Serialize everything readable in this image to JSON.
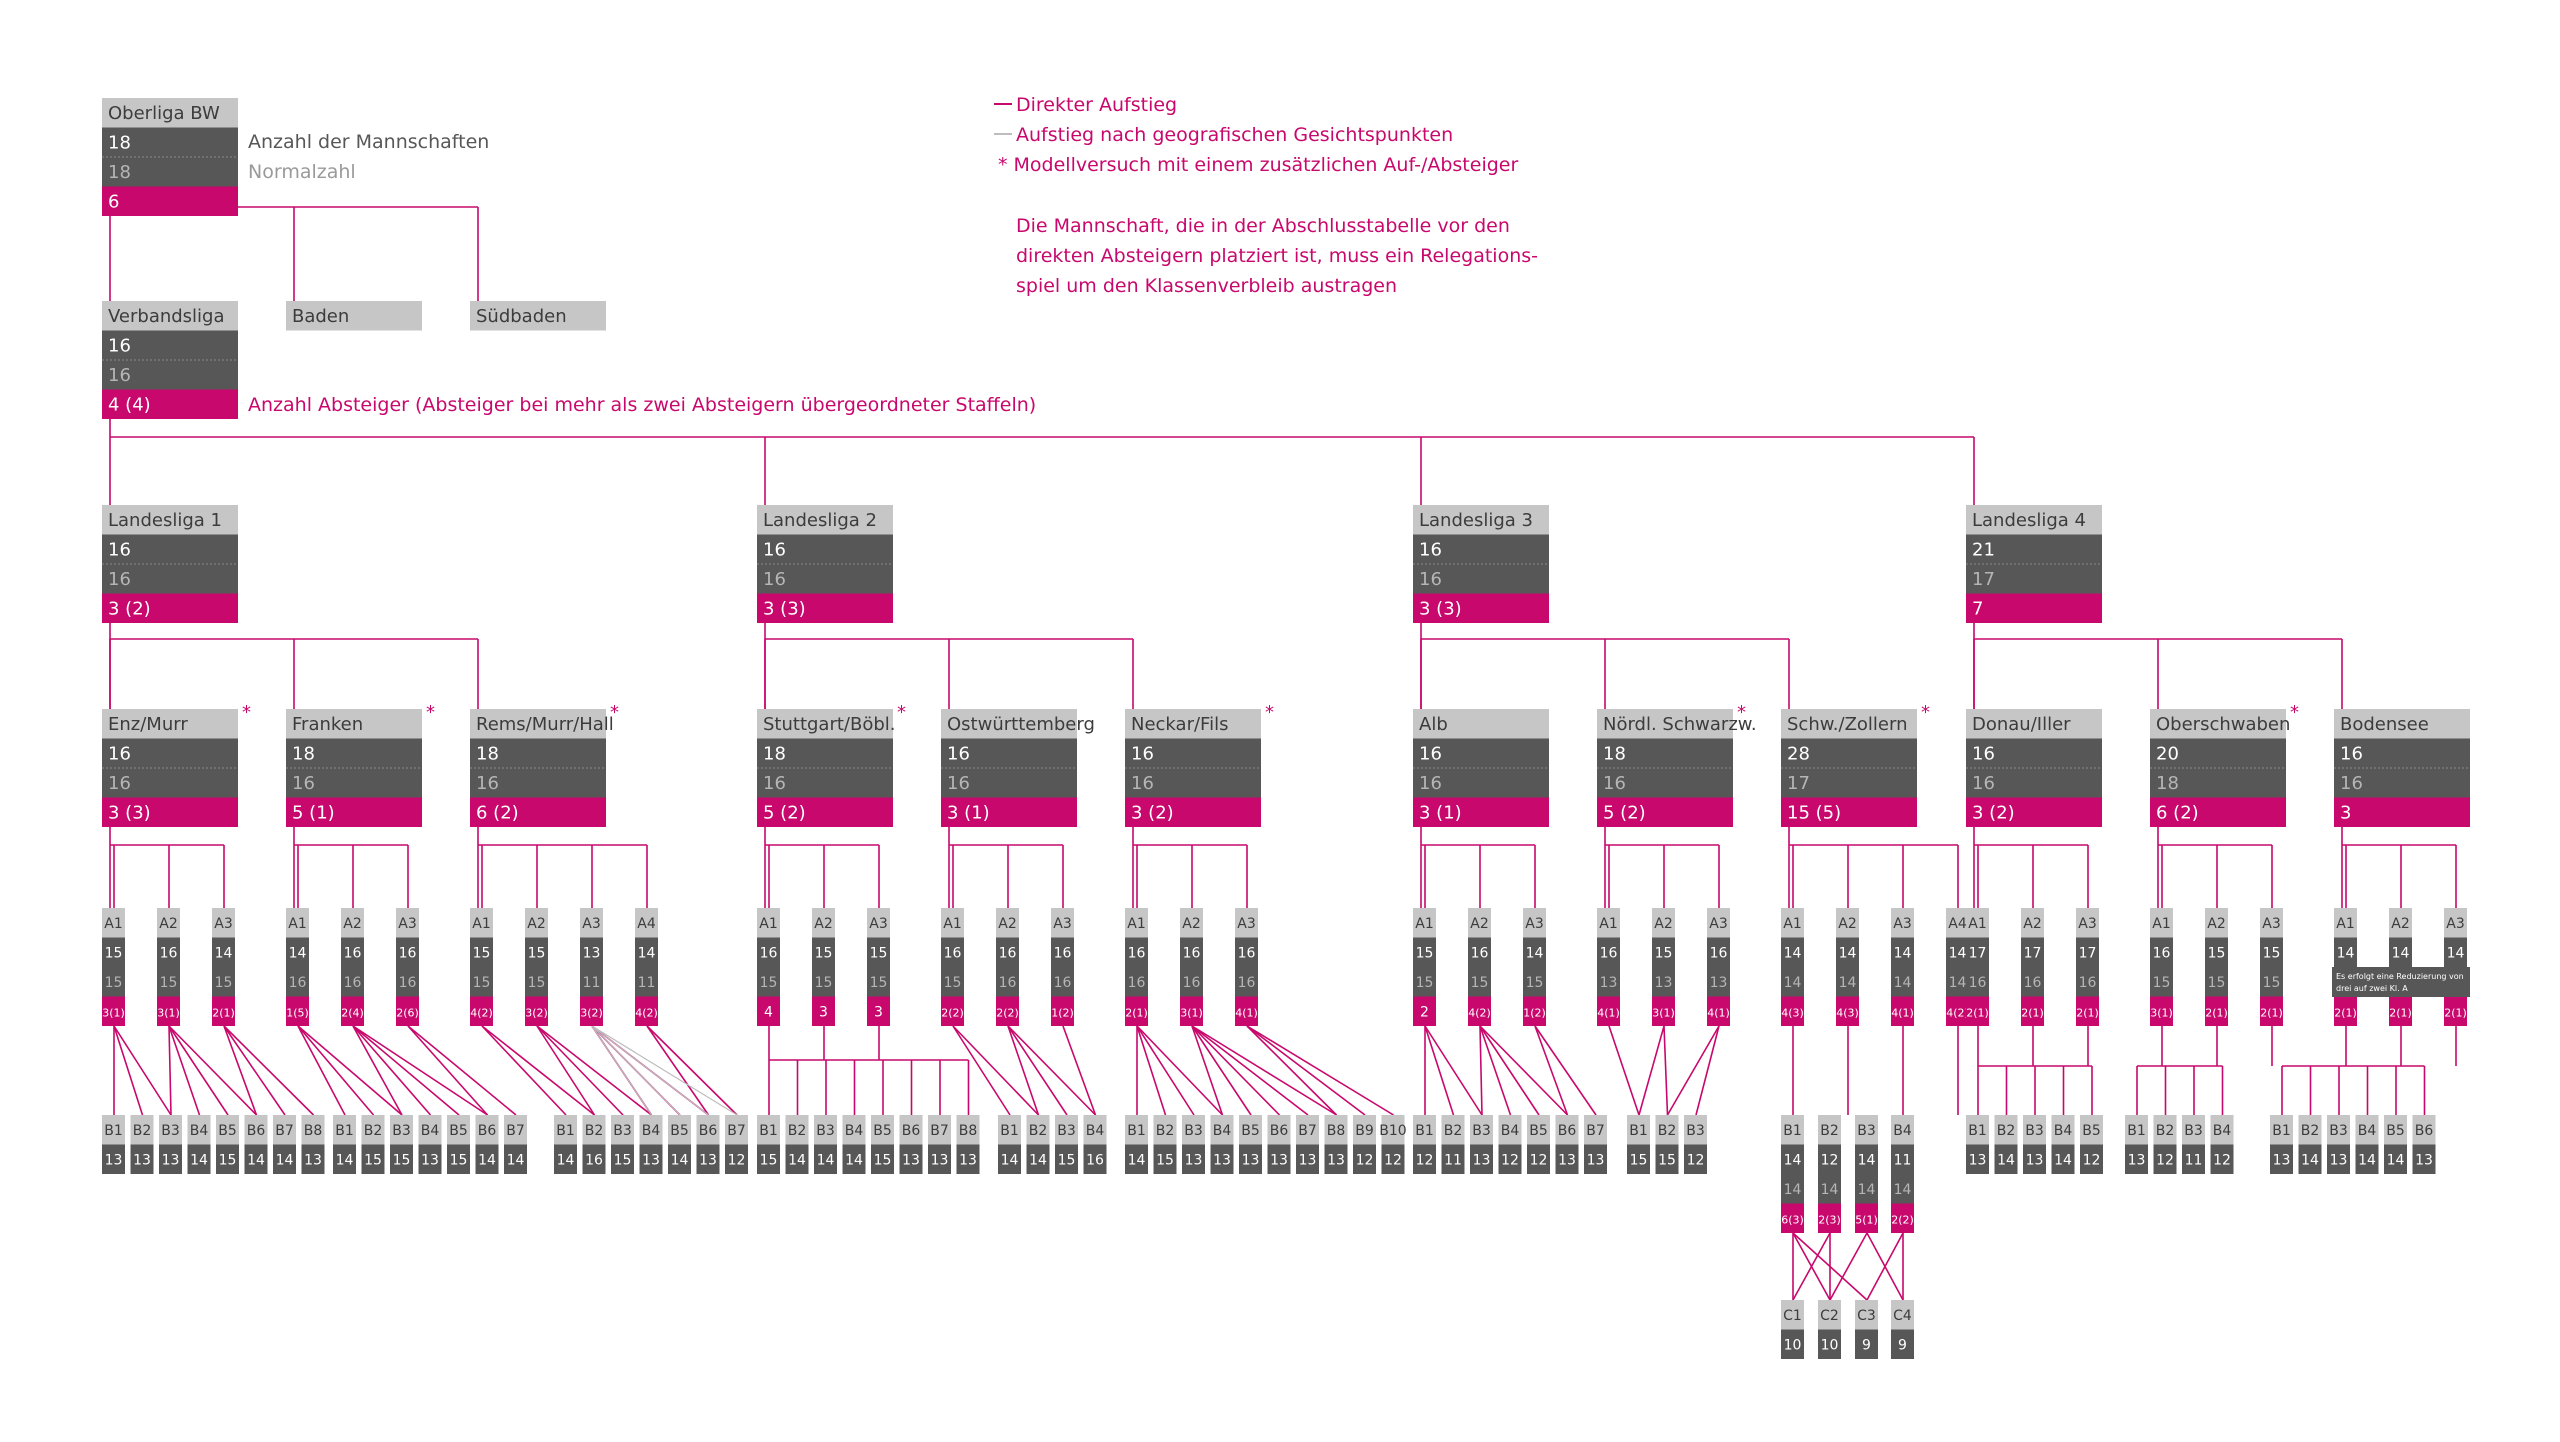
{
  "colors": {
    "accent": "#c8086c",
    "dark": "#575757",
    "light": "#c6c6c6",
    "title_text": "#3c3c3c",
    "line_grey": "#bdbdbd"
  },
  "legend": {
    "direct": "Direkter Aufstieg",
    "geo": "Aufstieg nach geografischen Gesichtspunkten",
    "model": "*  Modellversuch mit einem zusätzlichen Auf-/Absteiger",
    "note": [
      "Die Mannschaft, die in der Abschlusstabelle vor den",
      "direkten Absteigern platziert ist, muss ein Relegations-",
      "spiel um den Klassenverbleib austragen"
    ]
  },
  "annotations": {
    "teams": "Anzahl der Mannschaften",
    "normal": "Normalzahl",
    "relegated": "Anzahl Absteiger (Absteiger bei mehr als zwei Absteigern übergeordneter Staffeln)"
  },
  "oberliga": {
    "name": "Oberliga BW",
    "teams": "18",
    "normal": "18",
    "relegated": "6"
  },
  "oberliga_peers": [
    "Baden",
    "Südbaden"
  ],
  "verbandsliga": {
    "name": "Verbandsliga",
    "teams": "16",
    "normal": "16",
    "relegated": "4 (4)"
  },
  "landesligen": [
    {
      "name": "Landesliga 1",
      "teams": "16",
      "normal": "16",
      "relegated": "3 (2)"
    },
    {
      "name": "Landesliga 2",
      "teams": "16",
      "normal": "16",
      "relegated": "3 (3)"
    },
    {
      "name": "Landesliga 3",
      "teams": "16",
      "normal": "16",
      "relegated": "3 (3)"
    },
    {
      "name": "Landesliga 4",
      "teams": "21",
      "normal": "17",
      "relegated": "7"
    }
  ],
  "bezirke": [
    {
      "name": "Enz/Murr",
      "teams": "16",
      "normal": "16",
      "relegated": "3 (3)",
      "star": true,
      "a": [
        [
          "A1",
          "15",
          "15",
          "3(1)"
        ],
        [
          "A2",
          "16",
          "15",
          "3(1)"
        ],
        [
          "A3",
          "14",
          "15",
          "2(1)"
        ]
      ],
      "b": [
        [
          "B1",
          "13"
        ],
        [
          "B2",
          "13"
        ],
        [
          "B3",
          "13"
        ],
        [
          "B4",
          "14"
        ],
        [
          "B5",
          "15"
        ],
        [
          "B6",
          "14"
        ],
        [
          "B7",
          "14"
        ],
        [
          "B8",
          "13"
        ]
      ]
    },
    {
      "name": "Franken",
      "teams": "18",
      "normal": "16",
      "relegated": "5 (1)",
      "star": true,
      "a": [
        [
          "A1",
          "14",
          "16",
          "1(5)"
        ],
        [
          "A2",
          "16",
          "16",
          "2(4)"
        ],
        [
          "A3",
          "16",
          "16",
          "2(6)"
        ]
      ],
      "b": [
        [
          "B1",
          "14"
        ],
        [
          "B2",
          "15"
        ],
        [
          "B3",
          "15"
        ],
        [
          "B4",
          "13"
        ],
        [
          "B5",
          "15"
        ],
        [
          "B6",
          "14"
        ],
        [
          "B7",
          "14"
        ]
      ]
    },
    {
      "name": "Rems/Murr/Hall",
      "teams": "18",
      "normal": "16",
      "relegated": "6 (2)",
      "star": true,
      "a": [
        [
          "A1",
          "15",
          "15",
          "4(2)"
        ],
        [
          "A2",
          "15",
          "15",
          "3(2)"
        ],
        [
          "A3",
          "13",
          "11",
          "3(2)"
        ],
        [
          "A4",
          "14",
          "11",
          "4(2)"
        ]
      ],
      "b": [
        [
          "B1",
          "14"
        ],
        [
          "B2",
          "16"
        ],
        [
          "B3",
          "15"
        ],
        [
          "B4",
          "13"
        ],
        [
          "B5",
          "14"
        ],
        [
          "B6",
          "13"
        ],
        [
          "B7",
          "12"
        ]
      ]
    },
    {
      "name": "Stuttgart/Böbl.",
      "teams": "18",
      "normal": "16",
      "relegated": "5 (2)",
      "star": true,
      "a": [
        [
          "A1",
          "16",
          "15",
          "4"
        ],
        [
          "A2",
          "15",
          "15",
          "3"
        ],
        [
          "A3",
          "15",
          "15",
          "3"
        ]
      ],
      "b": [
        [
          "B1",
          "15"
        ],
        [
          "B2",
          "14"
        ],
        [
          "B3",
          "14"
        ],
        [
          "B4",
          "14"
        ],
        [
          "B5",
          "15"
        ],
        [
          "B6",
          "13"
        ],
        [
          "B7",
          "13"
        ],
        [
          "B8",
          "13"
        ]
      ]
    },
    {
      "name": "Ostwürttemberg",
      "teams": "16",
      "normal": "16",
      "relegated": "3 (1)",
      "star": false,
      "a": [
        [
          "A1",
          "16",
          "15",
          "2(2)"
        ],
        [
          "A2",
          "16",
          "16",
          "2(2)"
        ],
        [
          "A3",
          "16",
          "16",
          "1(2)"
        ]
      ],
      "b": [
        [
          "B1",
          "14"
        ],
        [
          "B2",
          "14"
        ],
        [
          "B3",
          "15"
        ],
        [
          "B4",
          "16"
        ]
      ]
    },
    {
      "name": "Neckar/Fils",
      "teams": "16",
      "normal": "16",
      "relegated": "3 (2)",
      "star": true,
      "a": [
        [
          "A1",
          "16",
          "16",
          "2(1)"
        ],
        [
          "A2",
          "16",
          "16",
          "3(1)"
        ],
        [
          "A3",
          "16",
          "16",
          "4(1)"
        ]
      ],
      "b": [
        [
          "B1",
          "14"
        ],
        [
          "B2",
          "15"
        ],
        [
          "B3",
          "13"
        ],
        [
          "B4",
          "13"
        ],
        [
          "B5",
          "13"
        ],
        [
          "B6",
          "13"
        ],
        [
          "B7",
          "13"
        ],
        [
          "B8",
          "13"
        ],
        [
          "B9",
          "12"
        ],
        [
          "B10",
          "12"
        ]
      ]
    },
    {
      "name": "Alb",
      "teams": "16",
      "normal": "16",
      "relegated": "3 (1)",
      "star": false,
      "a": [
        [
          "A1",
          "15",
          "15",
          "2"
        ],
        [
          "A2",
          "16",
          "15",
          "4(2)"
        ],
        [
          "A3",
          "14",
          "15",
          "1(2)"
        ]
      ],
      "b": [
        [
          "B1",
          "12"
        ],
        [
          "B2",
          "11"
        ],
        [
          "B3",
          "13"
        ],
        [
          "B4",
          "12"
        ],
        [
          "B5",
          "12"
        ],
        [
          "B6",
          "13"
        ],
        [
          "B7",
          "13"
        ]
      ]
    },
    {
      "name": "Nördl. Schwarzw.",
      "teams": "18",
      "normal": "16",
      "relegated": "5 (2)",
      "star": true,
      "a": [
        [
          "A1",
          "16",
          "13",
          "4(1)"
        ],
        [
          "A2",
          "15",
          "13",
          "3(1)"
        ],
        [
          "A3",
          "16",
          "13",
          "4(1)"
        ]
      ],
      "b": [
        [
          "B1",
          "15"
        ],
        [
          "B2",
          "15"
        ],
        [
          "B3",
          "12"
        ]
      ]
    },
    {
      "name": "Schw./Zollern",
      "teams": "28",
      "normal": "17",
      "relegated": "15 (5)",
      "star": true,
      "a": [
        [
          "A1",
          "14",
          "14",
          "4(3)"
        ],
        [
          "A2",
          "14",
          "14",
          "4(3)"
        ],
        [
          "A3",
          "14",
          "14",
          "4(1)"
        ],
        [
          "A4",
          "14",
          "14",
          "4(2)"
        ]
      ],
      "b": [
        [
          "B1",
          "14",
          "14",
          "6(3)"
        ],
        [
          "B2",
          "12",
          "14",
          "2(3)"
        ],
        [
          "B3",
          "14",
          "14",
          "5(1)"
        ],
        [
          "B4",
          "11",
          "14",
          "2(2)"
        ]
      ],
      "c": [
        [
          "C1",
          "10"
        ],
        [
          "C2",
          "10"
        ],
        [
          "C3",
          "9"
        ],
        [
          "C4",
          "9"
        ]
      ]
    },
    {
      "name": "Donau/Iller",
      "teams": "16",
      "normal": "16",
      "relegated": "3 (2)",
      "star": false,
      "a": [
        [
          "A1",
          "17",
          "16",
          "2(1)"
        ],
        [
          "A2",
          "17",
          "16",
          "2(1)"
        ],
        [
          "A3",
          "17",
          "16",
          "2(1)"
        ]
      ],
      "b": [
        [
          "B1",
          "13"
        ],
        [
          "B2",
          "14"
        ],
        [
          "B3",
          "13"
        ],
        [
          "B4",
          "14"
        ],
        [
          "B5",
          "12"
        ]
      ]
    },
    {
      "name": "Oberschwaben",
      "teams": "20",
      "normal": "18",
      "relegated": "6 (2)",
      "star": true,
      "a": [
        [
          "A1",
          "16",
          "15",
          "3(1)"
        ],
        [
          "A2",
          "15",
          "15",
          "2(1)"
        ],
        [
          "A3",
          "15",
          "15",
          "2(1)"
        ]
      ],
      "b": [
        [
          "B1",
          "13"
        ],
        [
          "B2",
          "12"
        ],
        [
          "B3",
          "11"
        ],
        [
          "B4",
          "12"
        ]
      ]
    },
    {
      "name": "Bodensee",
      "teams": "16",
      "normal": "16",
      "relegated": "3",
      "star": false,
      "a": [
        [
          "A1",
          "14",
          "",
          "2(1)"
        ],
        [
          "A2",
          "14",
          "",
          "2(1)"
        ],
        [
          "A3",
          "14",
          "",
          "2(1)"
        ]
      ],
      "a_note": [
        "Es erfolgt eine Reduzierung von",
        "drei auf zwei Kl. A"
      ],
      "b": [
        [
          "B1",
          "13"
        ],
        [
          "B2",
          "14"
        ],
        [
          "B3",
          "13"
        ],
        [
          "B4",
          "14"
        ],
        [
          "B5",
          "14"
        ],
        [
          "B6",
          "13"
        ]
      ]
    }
  ]
}
